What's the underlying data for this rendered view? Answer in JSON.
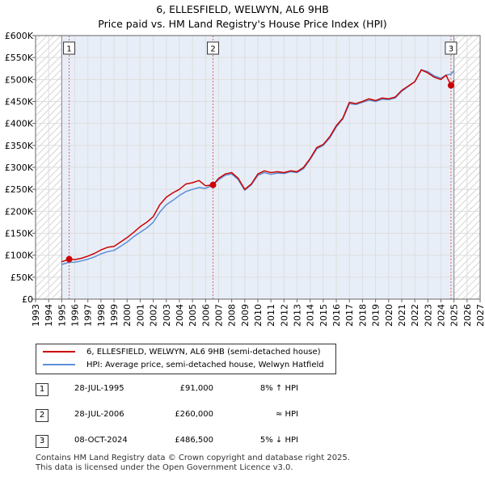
{
  "title_line1": "6, ELLESFIELD, WELWYN, AL6 9HB",
  "title_line2": "Price paid vs. HM Land Registry's House Price Index (HPI)",
  "legend": {
    "property_label": "6, ELLESFIELD, WELWYN, AL6 9HB (semi-detached house)",
    "hpi_label": "HPI: Average price, semi-detached house, Welwyn Hatfield"
  },
  "colors": {
    "property": "#cc0000",
    "hpi": "#5b8fd6",
    "shade": "#e8eef8",
    "hatch": "#cfcfcf",
    "grid": "#dddddd",
    "marker_line": "#e06060"
  },
  "transactions": [
    {
      "num": "1",
      "date": "28-JUL-1995",
      "price": "£91,000",
      "hpi": "8% ↑ HPI"
    },
    {
      "num": "2",
      "date": "28-JUL-2006",
      "price": "£260,000",
      "hpi": "≈ HPI"
    },
    {
      "num": "3",
      "date": "08-OCT-2024",
      "price": "£486,500",
      "hpi": "5% ↓ HPI"
    }
  ],
  "footer_line1": "Contains HM Land Registry data © Crown copyright and database right 2025.",
  "footer_line2": "This data is licensed under the Open Government Licence v3.0.",
  "chart_data": {
    "type": "line",
    "title": "6, ELLESFIELD, WELWYN, AL6 9HB",
    "subtitle": "Price paid vs. HM Land Registry's House Price Index (HPI)",
    "xlabel": "",
    "ylabel": "",
    "xlim": [
      1993,
      2027
    ],
    "ylim": [
      0,
      600000
    ],
    "grid": true,
    "x_ticks": [
      "1993",
      "1994",
      "1995",
      "1996",
      "1997",
      "1998",
      "1999",
      "2000",
      "2001",
      "2002",
      "2003",
      "2004",
      "2005",
      "2006",
      "2007",
      "2008",
      "2009",
      "2010",
      "2011",
      "2012",
      "2013",
      "2014",
      "2015",
      "2016",
      "2017",
      "2018",
      "2019",
      "2020",
      "2021",
      "2022",
      "2023",
      "2024",
      "2025",
      "2026",
      "2027"
    ],
    "y_ticks": [
      {
        "value": 0,
        "label": "£0"
      },
      {
        "value": 50000,
        "label": "£50K"
      },
      {
        "value": 100000,
        "label": "£100K"
      },
      {
        "value": 150000,
        "label": "£150K"
      },
      {
        "value": 200000,
        "label": "£200K"
      },
      {
        "value": 250000,
        "label": "£250K"
      },
      {
        "value": 300000,
        "label": "£300K"
      },
      {
        "value": 350000,
        "label": "£350K"
      },
      {
        "value": 400000,
        "label": "£400K"
      },
      {
        "value": 450000,
        "label": "£450K"
      },
      {
        "value": 500000,
        "label": "£500K"
      },
      {
        "value": 550000,
        "label": "£550K"
      },
      {
        "value": 600000,
        "label": "£600K"
      }
    ],
    "hatch_regions": [
      [
        1993,
        1995.0
      ],
      [
        2025.0,
        2027
      ]
    ],
    "shaded_region": [
      1995.0,
      2025.0
    ],
    "series": [
      {
        "name": "6, ELLESFIELD, WELWYN, AL6 9HB (semi-detached house)",
        "points": [
          [
            1995.0,
            85000
          ],
          [
            1995.57,
            91000
          ],
          [
            1996.0,
            90000
          ],
          [
            1996.5,
            93000
          ],
          [
            1997.0,
            98000
          ],
          [
            1997.5,
            104000
          ],
          [
            1998.0,
            112000
          ],
          [
            1998.5,
            118000
          ],
          [
            1999.0,
            120000
          ],
          [
            1999.5,
            130000
          ],
          [
            2000.0,
            140000
          ],
          [
            2000.5,
            152000
          ],
          [
            2001.0,
            165000
          ],
          [
            2001.5,
            175000
          ],
          [
            2002.0,
            188000
          ],
          [
            2002.5,
            215000
          ],
          [
            2003.0,
            232000
          ],
          [
            2003.5,
            242000
          ],
          [
            2004.0,
            250000
          ],
          [
            2004.5,
            262000
          ],
          [
            2005.0,
            265000
          ],
          [
            2005.5,
            270000
          ],
          [
            2006.0,
            258000
          ],
          [
            2006.57,
            260000
          ],
          [
            2007.0,
            275000
          ],
          [
            2007.5,
            285000
          ],
          [
            2008.0,
            288000
          ],
          [
            2008.5,
            275000
          ],
          [
            2009.0,
            250000
          ],
          [
            2009.5,
            262000
          ],
          [
            2010.0,
            285000
          ],
          [
            2010.5,
            292000
          ],
          [
            2011.0,
            288000
          ],
          [
            2011.5,
            290000
          ],
          [
            2012.0,
            288000
          ],
          [
            2012.5,
            292000
          ],
          [
            2013.0,
            290000
          ],
          [
            2013.5,
            300000
          ],
          [
            2014.0,
            320000
          ],
          [
            2014.5,
            345000
          ],
          [
            2015.0,
            352000
          ],
          [
            2015.5,
            370000
          ],
          [
            2016.0,
            395000
          ],
          [
            2016.5,
            412000
          ],
          [
            2017.0,
            448000
          ],
          [
            2017.5,
            445000
          ],
          [
            2018.0,
            450000
          ],
          [
            2018.5,
            456000
          ],
          [
            2019.0,
            452000
          ],
          [
            2019.5,
            458000
          ],
          [
            2020.0,
            456000
          ],
          [
            2020.5,
            460000
          ],
          [
            2021.0,
            475000
          ],
          [
            2021.5,
            485000
          ],
          [
            2022.0,
            495000
          ],
          [
            2022.5,
            522000
          ],
          [
            2023.0,
            515000
          ],
          [
            2023.5,
            505000
          ],
          [
            2024.0,
            500000
          ],
          [
            2024.4,
            510000
          ],
          [
            2024.77,
            486500
          ],
          [
            2025.0,
            498000
          ]
        ]
      },
      {
        "name": "HPI: Average price, semi-detached house, Welwyn Hatfield",
        "points": [
          [
            1995.0,
            79000
          ],
          [
            1995.57,
            84000
          ],
          [
            1996.0,
            84000
          ],
          [
            1996.5,
            87000
          ],
          [
            1997.0,
            91000
          ],
          [
            1997.5,
            96000
          ],
          [
            1998.0,
            103000
          ],
          [
            1998.5,
            108000
          ],
          [
            1999.0,
            111000
          ],
          [
            1999.5,
            120000
          ],
          [
            2000.0,
            130000
          ],
          [
            2000.5,
            142000
          ],
          [
            2001.0,
            152000
          ],
          [
            2001.5,
            162000
          ],
          [
            2002.0,
            175000
          ],
          [
            2002.5,
            198000
          ],
          [
            2003.0,
            215000
          ],
          [
            2003.5,
            225000
          ],
          [
            2004.0,
            236000
          ],
          [
            2004.5,
            245000
          ],
          [
            2005.0,
            250000
          ],
          [
            2005.5,
            254000
          ],
          [
            2006.0,
            252000
          ],
          [
            2006.57,
            260000
          ],
          [
            2007.0,
            272000
          ],
          [
            2007.5,
            282000
          ],
          [
            2008.0,
            285000
          ],
          [
            2008.5,
            272000
          ],
          [
            2009.0,
            248000
          ],
          [
            2009.5,
            260000
          ],
          [
            2010.0,
            282000
          ],
          [
            2010.5,
            288000
          ],
          [
            2011.0,
            284000
          ],
          [
            2011.5,
            287000
          ],
          [
            2012.0,
            286000
          ],
          [
            2012.5,
            290000
          ],
          [
            2013.0,
            288000
          ],
          [
            2013.5,
            297000
          ],
          [
            2014.0,
            318000
          ],
          [
            2014.5,
            342000
          ],
          [
            2015.0,
            350000
          ],
          [
            2015.5,
            367000
          ],
          [
            2016.0,
            392000
          ],
          [
            2016.5,
            410000
          ],
          [
            2017.0,
            445000
          ],
          [
            2017.5,
            443000
          ],
          [
            2018.0,
            448000
          ],
          [
            2018.5,
            453000
          ],
          [
            2019.0,
            450000
          ],
          [
            2019.5,
            455000
          ],
          [
            2020.0,
            454000
          ],
          [
            2020.5,
            458000
          ],
          [
            2021.0,
            473000
          ],
          [
            2021.5,
            484000
          ],
          [
            2022.0,
            495000
          ],
          [
            2022.5,
            522000
          ],
          [
            2023.0,
            518000
          ],
          [
            2023.5,
            508000
          ],
          [
            2024.0,
            503000
          ],
          [
            2024.4,
            510000
          ],
          [
            2024.77,
            512000
          ],
          [
            2025.0,
            520000
          ]
        ]
      }
    ],
    "sales": [
      {
        "num": "1",
        "x": 1995.57,
        "y": 91000
      },
      {
        "num": "2",
        "x": 2006.57,
        "y": 260000
      },
      {
        "num": "3",
        "x": 2024.77,
        "y": 486500
      }
    ]
  }
}
